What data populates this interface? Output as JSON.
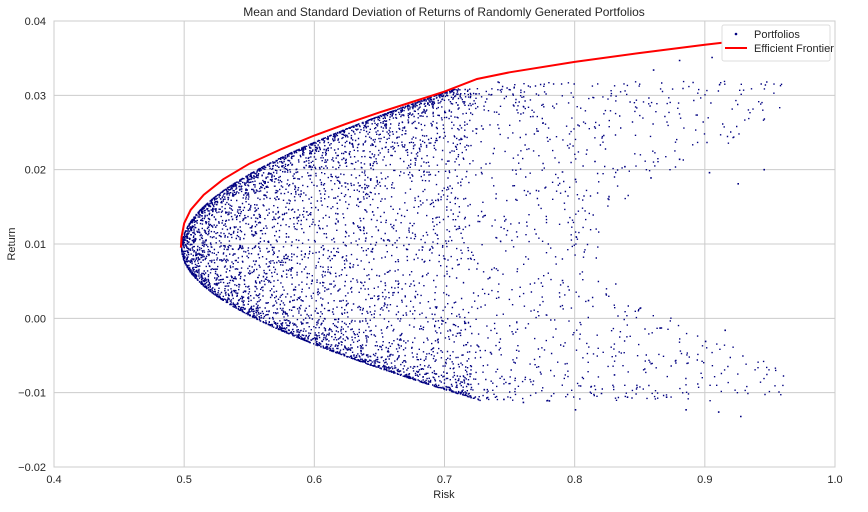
{
  "chart_data": {
    "type": "scatter",
    "title": "Mean and Standard Deviation of Returns of Randomly Generated Portfolios",
    "xlabel": "Risk",
    "ylabel": "Return",
    "xlim": [
      0.4,
      1.0
    ],
    "ylim": [
      -0.02,
      0.04
    ],
    "xticks": [
      0.4,
      0.5,
      0.6,
      0.7,
      0.8,
      0.9,
      1.0
    ],
    "xtick_labels": [
      "0.4",
      "0.5",
      "0.6",
      "0.7",
      "0.8",
      "0.9",
      "1.0"
    ],
    "yticks": [
      -0.02,
      -0.01,
      0.0,
      0.01,
      0.02,
      0.03,
      0.04
    ],
    "ytick_labels": [
      "−0.02",
      "−0.01",
      "0.00",
      "0.01",
      "0.02",
      "0.03",
      "0.04"
    ],
    "grid": true,
    "legend_position": "upper right",
    "legend": [
      "Portfolios",
      "Efficient Frontier"
    ],
    "series": [
      {
        "name": "Portfolios",
        "kind": "scatter",
        "color": "#000080",
        "marker": "dot",
        "description": "dense cloud of random portfolios bounded on the left by a hyperbola with vertex near (0.497, 0.0095); density thins toward higher risk",
        "approx_point_count": 20000,
        "outliers": [
          [
            0.945,
            0.0201
          ],
          [
            0.925,
            0.0182
          ],
          [
            0.903,
            0.0197
          ],
          [
            0.88,
            0.0215
          ],
          [
            0.858,
            0.019
          ],
          [
            0.838,
            0.0205
          ],
          [
            0.815,
            0.0212
          ],
          [
            0.8,
            0.0188
          ],
          [
            0.79,
            0.0198
          ],
          [
            0.905,
            0.0352
          ],
          [
            0.88,
            0.0348
          ],
          [
            0.86,
            0.0335
          ],
          [
            0.91,
            -0.0125
          ],
          [
            0.927,
            -0.0131
          ],
          [
            0.885,
            -0.0122
          ],
          [
            0.87,
            -0.0105
          ],
          [
            0.9,
            -0.003
          ],
          [
            0.915,
            -0.0015
          ],
          [
            0.865,
            -0.0012
          ],
          [
            0.84,
            -0.0105
          ],
          [
            0.82,
            -0.01
          ],
          [
            0.8,
            -0.0122
          ],
          [
            0.78,
            -0.011
          ],
          [
            0.76,
            -0.0112
          ],
          [
            0.745,
            -0.0108
          ],
          [
            0.73,
            -0.0095
          ],
          [
            0.85,
            0.0015
          ],
          [
            0.83,
            -0.0075
          ],
          [
            0.81,
            0.0025
          ],
          [
            0.79,
            0.0052
          ]
        ]
      },
      {
        "name": "Efficient Frontier",
        "kind": "line",
        "color": "#ff0000",
        "x": [
          0.4975,
          0.498,
          0.5,
          0.505,
          0.515,
          0.53,
          0.55,
          0.575,
          0.6,
          0.625,
          0.65,
          0.675,
          0.7,
          0.725,
          0.75,
          0.8,
          0.85,
          0.9,
          0.92
        ],
        "y": [
          0.0095,
          0.011,
          0.0128,
          0.0146,
          0.0166,
          0.0187,
          0.0208,
          0.0228,
          0.0246,
          0.0262,
          0.0277,
          0.0291,
          0.0305,
          0.0322,
          0.0331,
          0.0345,
          0.0357,
          0.0368,
          0.0372
        ]
      }
    ]
  },
  "colors": {
    "grid": "#cccccc",
    "axes_edge": "#cccccc",
    "text": "#262626",
    "portfolio_dot": "#000080",
    "frontier": "#ff0000"
  }
}
